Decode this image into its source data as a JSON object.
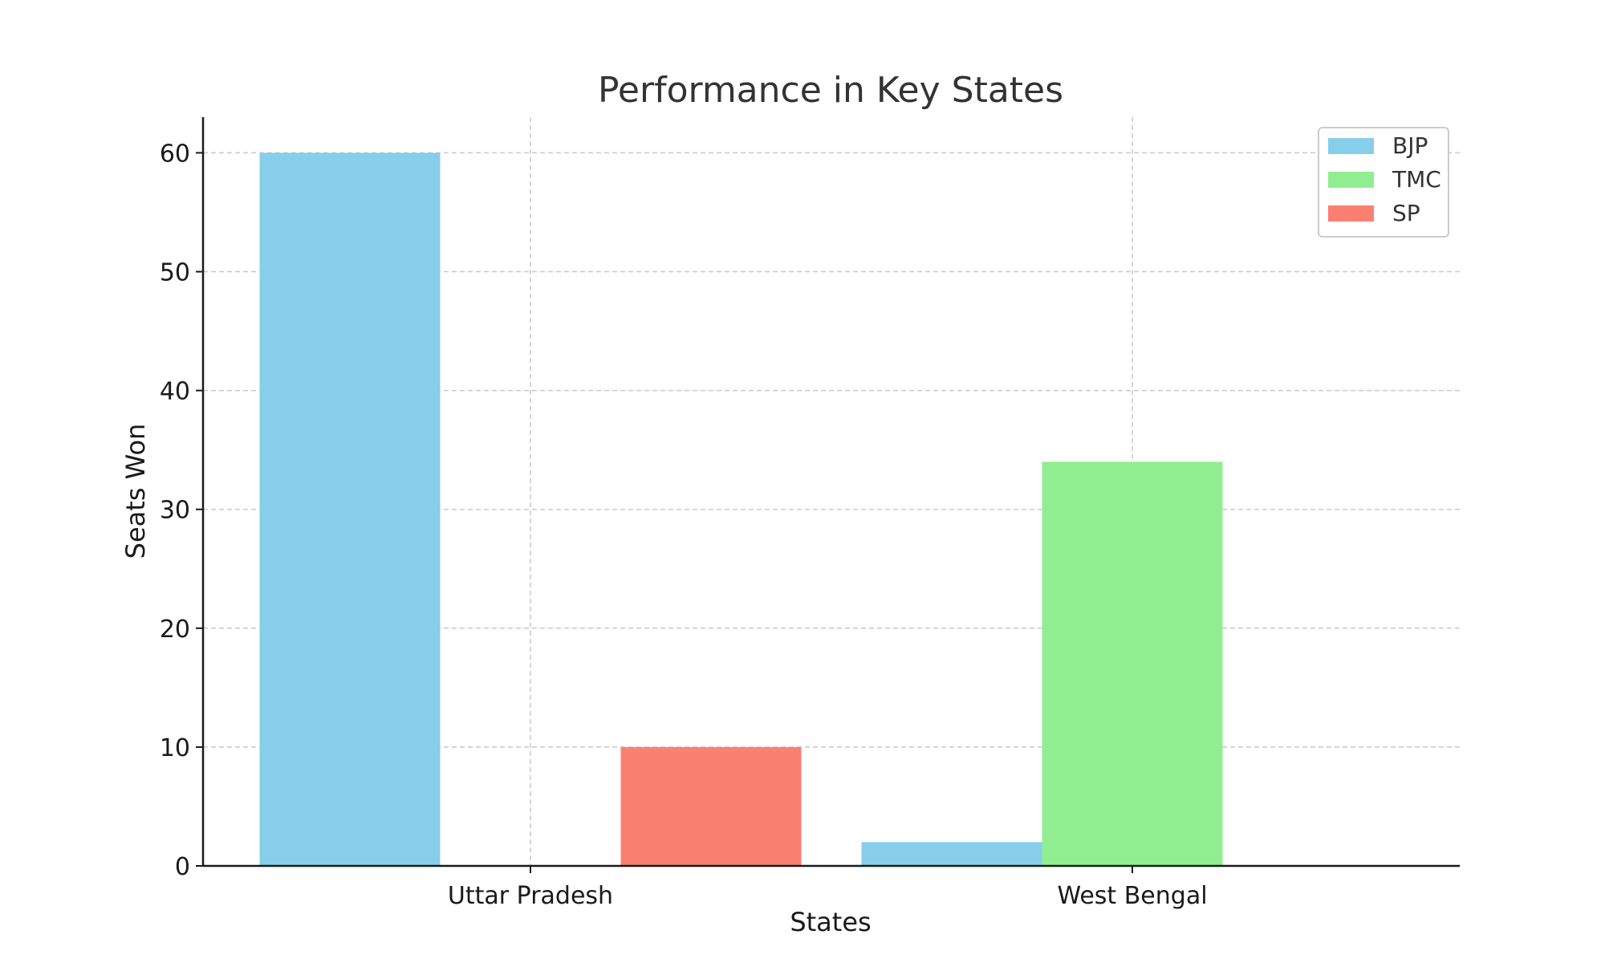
{
  "chart_data": {
    "type": "bar",
    "title": "Performance in Key States",
    "xlabel": "States",
    "ylabel": "Seats Won",
    "categories": [
      "Uttar Pradesh",
      "West Bengal"
    ],
    "series": [
      {
        "name": "BJP",
        "values": [
          60,
          2
        ],
        "color": "#87CEEB"
      },
      {
        "name": "TMC",
        "values": [
          0,
          34
        ],
        "color": "#90EE90"
      },
      {
        "name": "SP",
        "values": [
          10,
          0
        ],
        "color": "#FA8072"
      }
    ],
    "ylim": [
      0,
      63
    ],
    "yticks": [
      0,
      10,
      20,
      30,
      40,
      50,
      60
    ],
    "grid": true,
    "legend_position": "top-right"
  }
}
